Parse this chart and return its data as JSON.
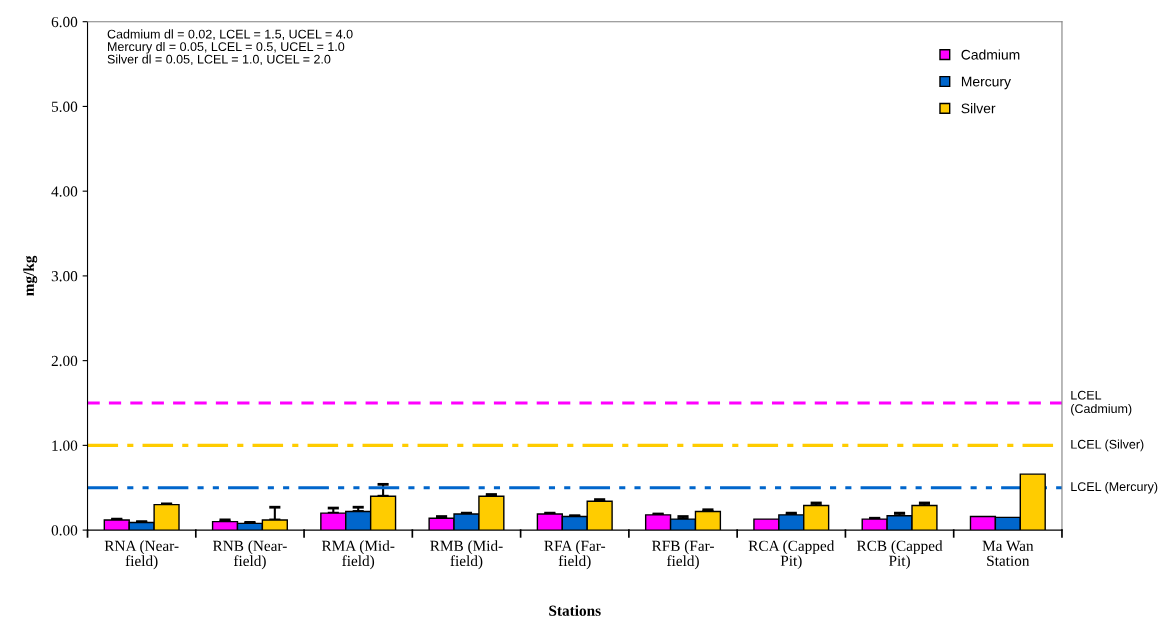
{
  "chart_data": {
    "type": "bar",
    "xlabel": "Stations",
    "ylabel": "mg/kg",
    "categories": [
      "RNA (Near-field)",
      "RNB (Near-field)",
      "RMA (Mid-field)",
      "RMB (Mid-field)",
      "RFA (Far-field)",
      "RFB (Far-field)",
      "RCA (Capped Pit)",
      "RCB (Capped Pit)",
      "Ma Wan Station"
    ],
    "series": [
      {
        "name": "Cadmium",
        "color": "#ff00ff",
        "values": [
          0.12,
          0.1,
          0.2,
          0.14,
          0.19,
          0.18,
          0.13,
          0.13,
          0.16
        ],
        "errors": [
          [
            0.12,
            0.13
          ],
          [
            0.1,
            0.12
          ],
          [
            0.2,
            0.26
          ],
          [
            0.14,
            0.16
          ],
          [
            0.19,
            0.2
          ],
          [
            0.18,
            0.19
          ],
          null,
          [
            0.13,
            0.14
          ],
          null
        ]
      },
      {
        "name": "Mercury",
        "color": "#0066cc",
        "values": [
          0.09,
          0.08,
          0.22,
          0.19,
          0.16,
          0.13,
          0.18,
          0.17,
          0.15
        ],
        "errors": [
          [
            0.09,
            0.1
          ],
          [
            0.08,
            0.09
          ],
          [
            0.22,
            0.27
          ],
          [
            0.19,
            0.2
          ],
          [
            0.16,
            0.17
          ],
          [
            0.13,
            0.16
          ],
          [
            0.18,
            0.2
          ],
          [
            0.17,
            0.2
          ],
          null
        ]
      },
      {
        "name": "Silver",
        "color": "#ffcc00",
        "values": [
          0.3,
          0.12,
          0.4,
          0.4,
          0.34,
          0.22,
          0.29,
          0.29,
          0.66
        ],
        "errors": [
          [
            0.3,
            0.31
          ],
          [
            0.12,
            0.27
          ],
          [
            0.4,
            0.54
          ],
          [
            0.4,
            0.42
          ],
          [
            0.34,
            0.36
          ],
          [
            0.22,
            0.24
          ],
          [
            0.29,
            0.32
          ],
          [
            0.29,
            0.32
          ],
          null
        ]
      }
    ],
    "ylim": [
      0,
      6
    ],
    "yticks": [
      {
        "value": 0,
        "label": "0.00"
      },
      {
        "value": 1,
        "label": "1.00"
      },
      {
        "value": 2,
        "label": "2.00"
      },
      {
        "value": 3,
        "label": "3.00"
      },
      {
        "value": 4,
        "label": "4.00"
      },
      {
        "value": 5,
        "label": "5.00"
      },
      {
        "value": 6,
        "label": "6.00"
      }
    ],
    "ref_lines": [
      {
        "axis": "y",
        "value": 1.5,
        "label": "LCEL\n(Cadmium)",
        "color": "#ff00ff",
        "line_style": "dashed"
      },
      {
        "axis": "y",
        "value": 1.0,
        "label": "LCEL (Silver)",
        "color": "#ffcc00",
        "line_style": "dashdot"
      },
      {
        "axis": "y",
        "value": 0.5,
        "label": "LCEL (Mercury)",
        "color": "#0066cc",
        "line_style": "dashdotdot"
      }
    ],
    "annotations": [
      "Cadmium dl = 0.02, LCEL = 1.5, UCEL = 4.0\nMercury dl = 0.05, LCEL = 0.5, UCEL = 1.0\nSilver dl = 0.05, LCEL = 1.0, UCEL = 2.0"
    ],
    "legend": "top right",
    "grid": false
  }
}
